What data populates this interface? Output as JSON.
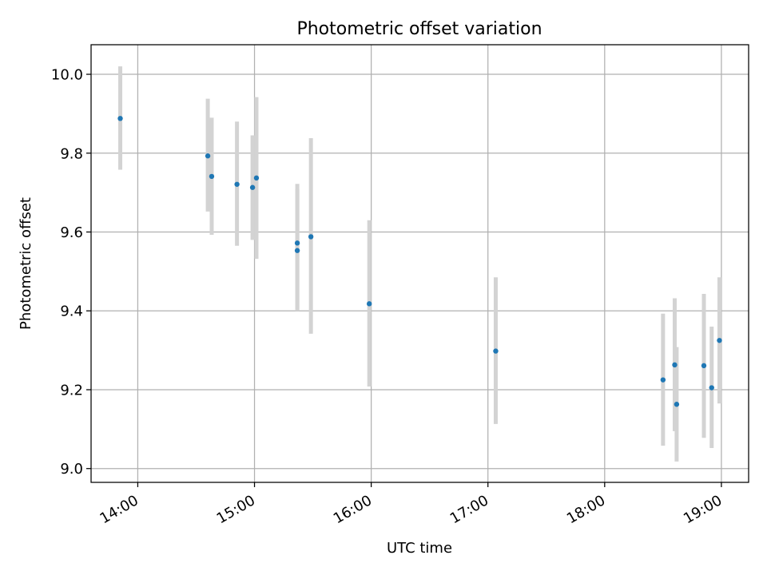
{
  "chart_data": {
    "type": "scatter",
    "title": "Photometric offset variation",
    "xlabel": "UTC time",
    "ylabel": "Photometric offset",
    "x_tick_labels": [
      "14:00",
      "15:00",
      "16:00",
      "17:00",
      "18:00",
      "19:00"
    ],
    "y_tick_labels": [
      "9.0",
      "9.2",
      "9.4",
      "9.6",
      "9.8",
      "10.0"
    ],
    "xlim": [
      "13:36",
      "19:14"
    ],
    "ylim": [
      8.965,
      10.075
    ],
    "grid": true,
    "marker_color": "#1f77b4",
    "errorbar_color": "#d3d3d3",
    "points": [
      {
        "x": "13:51",
        "y": 9.888,
        "err_low": 9.758,
        "err_high": 10.02
      },
      {
        "x": "14:36",
        "y": 9.793,
        "err_low": 9.652,
        "err_high": 9.938
      },
      {
        "x": "14:38",
        "y": 9.741,
        "err_low": 9.593,
        "err_high": 9.89
      },
      {
        "x": "14:51",
        "y": 9.721,
        "err_low": 9.565,
        "err_high": 9.88
      },
      {
        "x": "14:59",
        "y": 9.713,
        "err_low": 9.58,
        "err_high": 9.845
      },
      {
        "x": "15:01",
        "y": 9.737,
        "err_low": 9.532,
        "err_high": 9.942
      },
      {
        "x": "15:22",
        "y": 9.572,
        "err_low": 9.405,
        "err_high": 9.722
      },
      {
        "x": "15:22",
        "y": 9.553,
        "err_low": 9.4,
        "err_high": 9.708
      },
      {
        "x": "15:29",
        "y": 9.588,
        "err_low": 9.342,
        "err_high": 9.838
      },
      {
        "x": "15:59",
        "y": 9.418,
        "err_low": 9.208,
        "err_high": 9.63
      },
      {
        "x": "17:04",
        "y": 9.298,
        "err_low": 9.113,
        "err_high": 9.485
      },
      {
        "x": "18:30",
        "y": 9.225,
        "err_low": 9.058,
        "err_high": 9.393
      },
      {
        "x": "18:36",
        "y": 9.263,
        "err_low": 9.095,
        "err_high": 9.432
      },
      {
        "x": "18:37",
        "y": 9.163,
        "err_low": 9.018,
        "err_high": 9.308
      },
      {
        "x": "18:51",
        "y": 9.261,
        "err_low": 9.078,
        "err_high": 9.443
      },
      {
        "x": "18:55",
        "y": 9.205,
        "err_low": 9.052,
        "err_high": 9.36
      },
      {
        "x": "18:59",
        "y": 9.325,
        "err_low": 9.165,
        "err_high": 9.485
      }
    ]
  }
}
